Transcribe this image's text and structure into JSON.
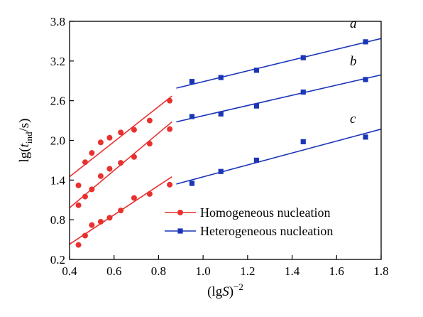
{
  "chart_data": {
    "type": "scatter",
    "xlabel": "(lgS)⁻²",
    "ylabel": "lg(t_ind/s)",
    "xlim": [
      0.4,
      1.8
    ],
    "ylim": [
      0.2,
      3.8
    ],
    "xticks": [
      "0.4",
      "0.6",
      "0.8",
      "1.0",
      "1.2",
      "1.4",
      "1.6",
      "1.8"
    ],
    "yticks": [
      "0.2",
      "0.8",
      "1.4",
      "2.0",
      "2.6",
      "3.2",
      "3.8"
    ],
    "grid": false,
    "legend_position": "bottom-right",
    "series": [
      {
        "name": "Homogeneous nucleation",
        "color": "#e8312f",
        "marker": "circle",
        "groups": [
          {
            "points": [
              [
                0.44,
                1.32
              ],
              [
                0.47,
                1.67
              ],
              [
                0.5,
                1.81
              ],
              [
                0.54,
                1.97
              ],
              [
                0.58,
                2.04
              ],
              [
                0.63,
                2.12
              ],
              [
                0.69,
                2.16
              ],
              [
                0.76,
                2.3
              ],
              [
                0.85,
                2.6
              ]
            ],
            "fit": [
              [
                0.4,
                1.45
              ],
              [
                0.86,
                2.67
              ]
            ]
          },
          {
            "points": [
              [
                0.44,
                1.02
              ],
              [
                0.47,
                1.15
              ],
              [
                0.5,
                1.26
              ],
              [
                0.54,
                1.46
              ],
              [
                0.58,
                1.57
              ],
              [
                0.63,
                1.66
              ],
              [
                0.69,
                1.75
              ],
              [
                0.76,
                1.95
              ],
              [
                0.85,
                2.17
              ]
            ],
            "fit": [
              [
                0.4,
                0.98
              ],
              [
                0.86,
                2.28
              ]
            ]
          },
          {
            "points": [
              [
                0.44,
                0.42
              ],
              [
                0.47,
                0.56
              ],
              [
                0.5,
                0.72
              ],
              [
                0.54,
                0.77
              ],
              [
                0.58,
                0.83
              ],
              [
                0.63,
                0.94
              ],
              [
                0.69,
                1.13
              ],
              [
                0.76,
                1.19
              ],
              [
                0.85,
                1.33
              ]
            ],
            "fit": [
              [
                0.4,
                0.43
              ],
              [
                0.86,
                1.45
              ]
            ]
          }
        ]
      },
      {
        "name": "Heterogeneous nucleation",
        "color": "#1b35b8",
        "marker": "square",
        "groups": [
          {
            "label": "a",
            "points": [
              [
                0.95,
                2.89
              ],
              [
                1.08,
                2.95
              ],
              [
                1.24,
                3.06
              ],
              [
                1.45,
                3.25
              ],
              [
                1.73,
                3.49
              ]
            ],
            "fit": [
              [
                0.88,
                2.79
              ],
              [
                1.8,
                3.54
              ]
            ]
          },
          {
            "label": "b",
            "points": [
              [
                0.95,
                2.36
              ],
              [
                1.08,
                2.4
              ],
              [
                1.24,
                2.52
              ],
              [
                1.45,
                2.73
              ],
              [
                1.73,
                2.92
              ]
            ],
            "fit": [
              [
                0.88,
                2.28
              ],
              [
                1.8,
                2.99
              ]
            ]
          },
          {
            "label": "c",
            "points": [
              [
                0.95,
                1.35
              ],
              [
                1.08,
                1.53
              ],
              [
                1.24,
                1.7
              ],
              [
                1.45,
                1.98
              ],
              [
                1.73,
                2.05
              ]
            ],
            "fit": [
              [
                0.88,
                1.34
              ],
              [
                1.8,
                2.17
              ]
            ]
          }
        ]
      }
    ]
  }
}
